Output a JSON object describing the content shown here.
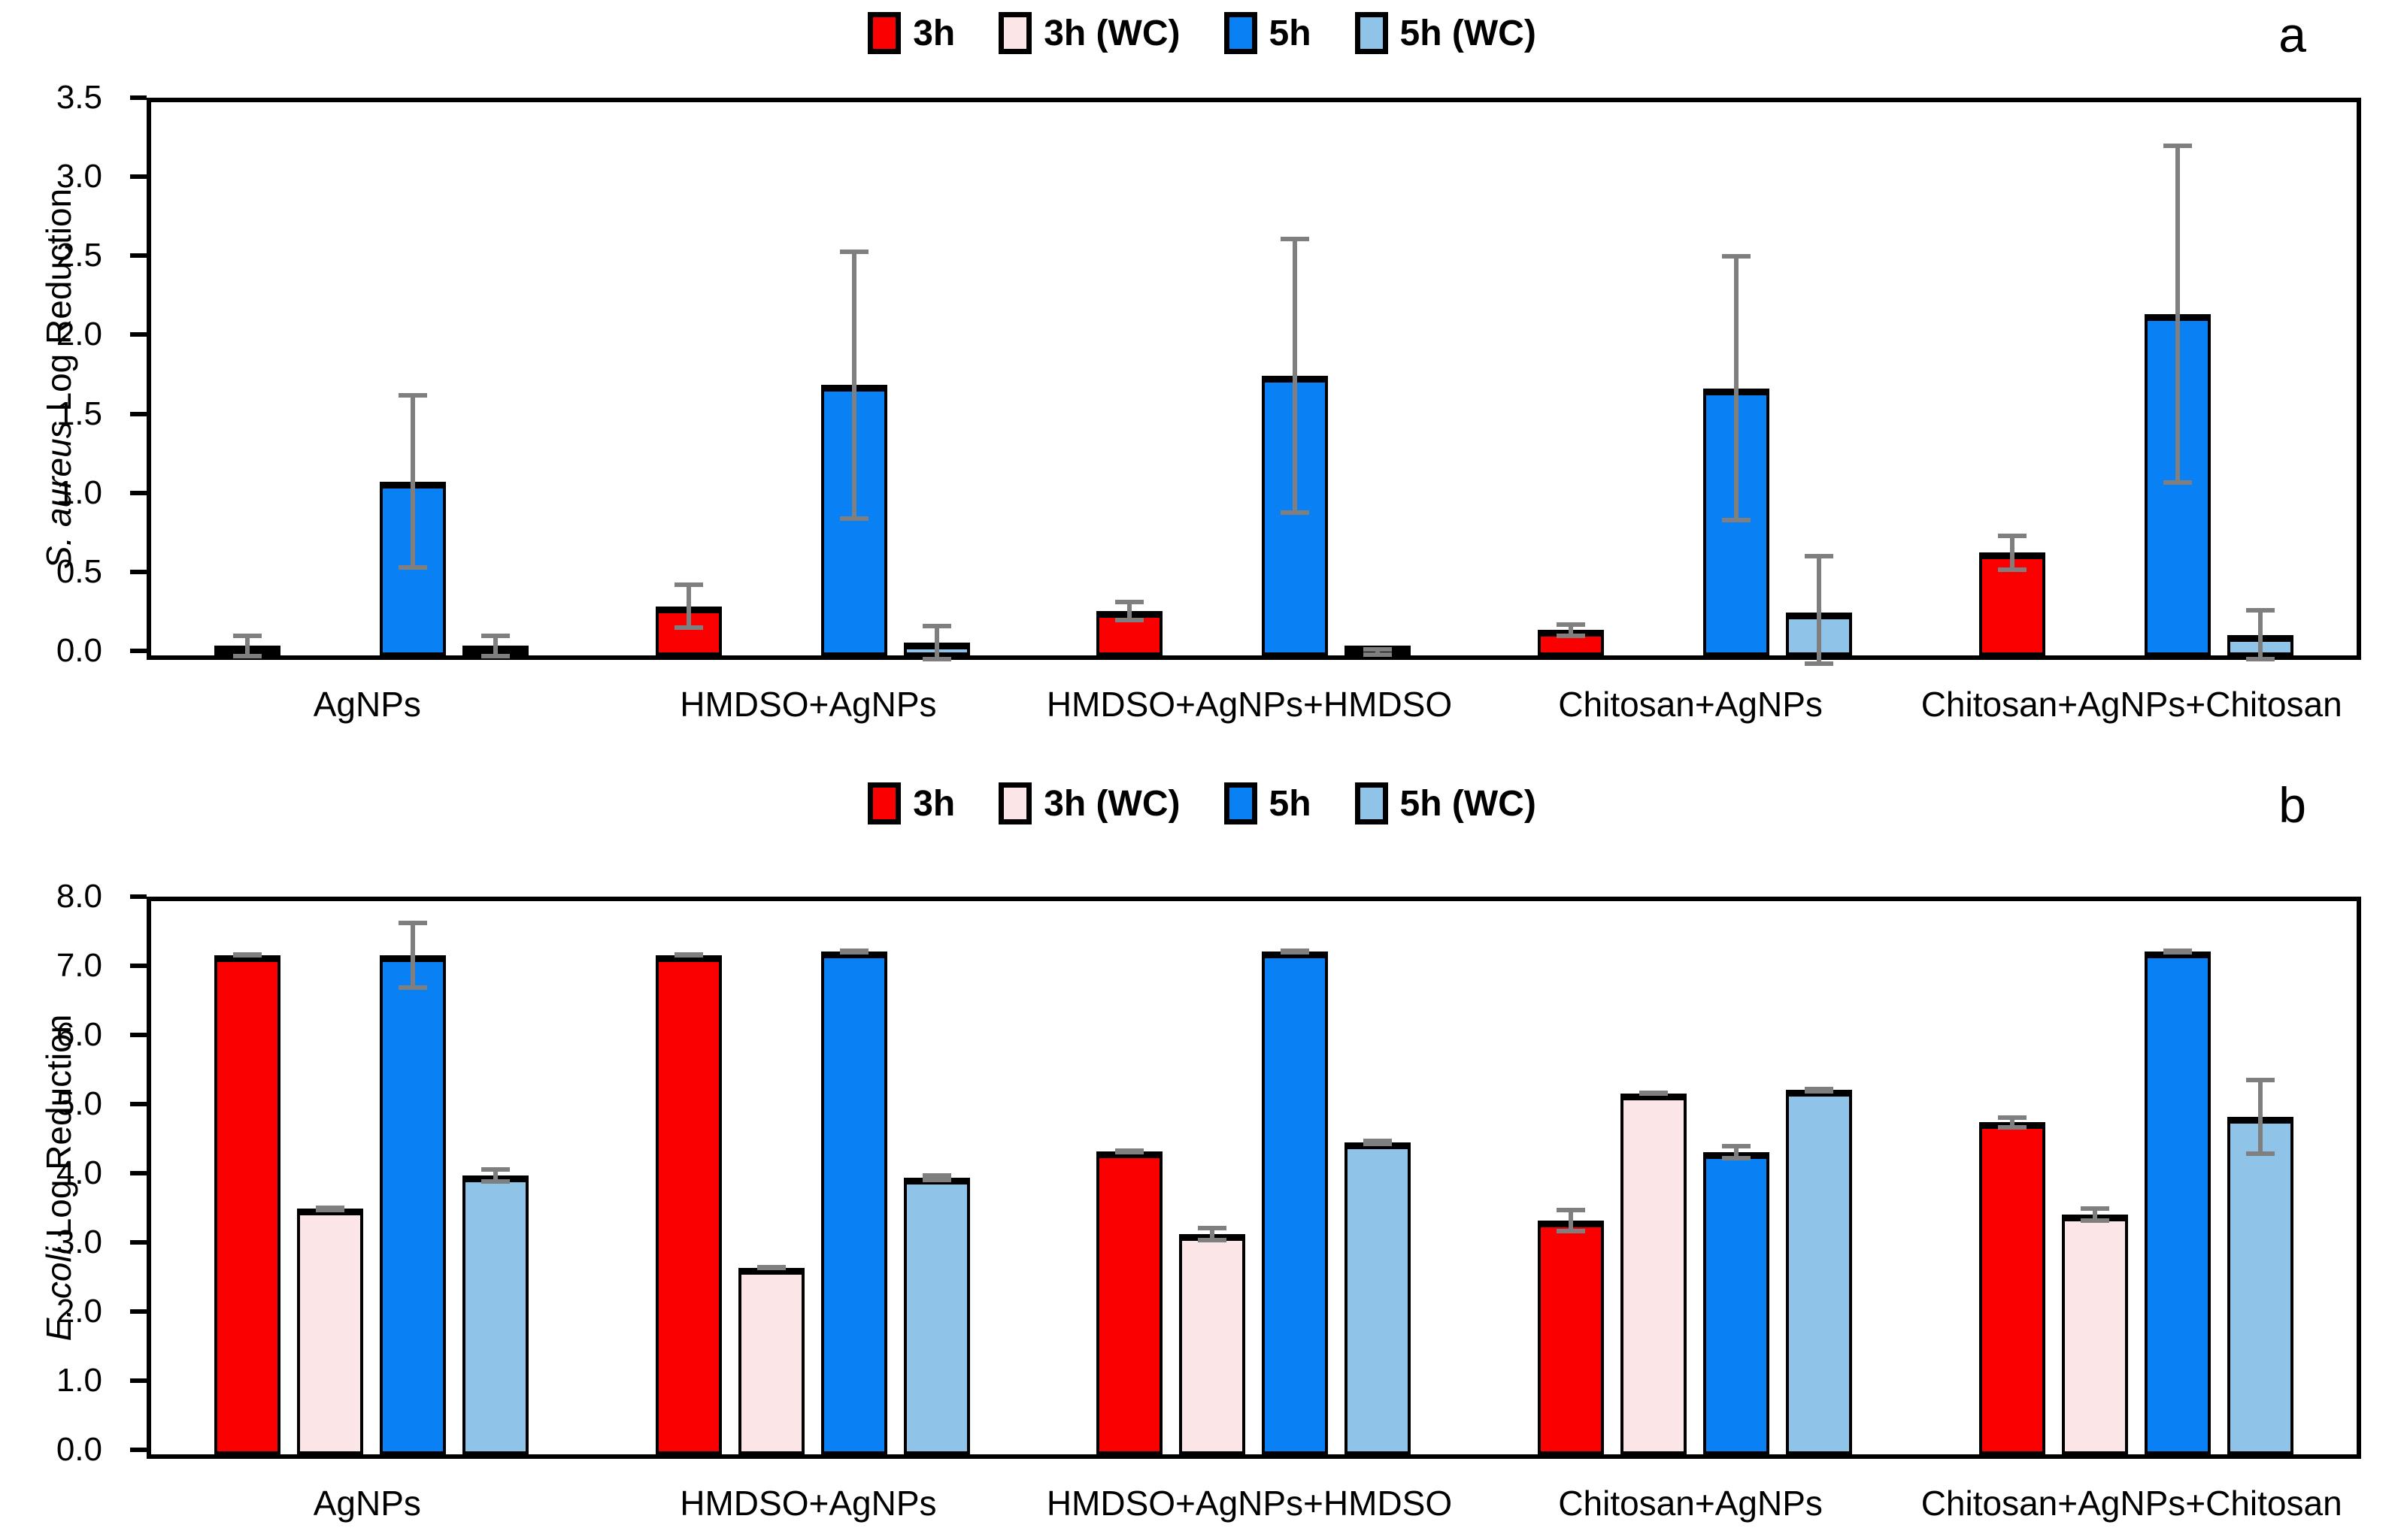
{
  "figure_colors": {
    "bar_3h": "#FA0000",
    "bar_3h_wc": "#FBE5E6",
    "bar_5h": "#0A80F5",
    "bar_5h_wc": "#8FC3E8",
    "error_bar": "#7F7F7F",
    "axis": "#000000"
  },
  "chart_data": [
    {
      "type": "bar",
      "panel": "a",
      "title": "",
      "ylabel": "S. aureus Log Reduction",
      "ylabel_italic_prefix": "S. aureus",
      "ylabel_suffix": " Log Reduction",
      "xlabel": "",
      "ylim": [
        0,
        3.5
      ],
      "ytick_step": 0.5,
      "grid": false,
      "legend_position": "top-center",
      "categories": [
        "AgNPs",
        "HMDSO+AgNPs",
        "HMDSO+AgNPs+HMDSO",
        "Chitosan+AgNPs",
        "Chitosan+AgNPs+Chitosan"
      ],
      "series": [
        {
          "name": "3h",
          "color": "#FA0000",
          "values": [
            0.06,
            0.31,
            0.28,
            0.16,
            0.65
          ],
          "errors": [
            0.08,
            0.15,
            0.07,
            0.05,
            0.12
          ]
        },
        {
          "name": "3h (WC)",
          "color": "#FBE5E6",
          "values": [
            0,
            0,
            0,
            0,
            0
          ],
          "errors": [
            0,
            0,
            0,
            0,
            0
          ]
        },
        {
          "name": "5h",
          "color": "#0A80F5",
          "values": [
            1.1,
            1.71,
            1.77,
            1.69,
            2.16
          ],
          "errors": [
            0.56,
            0.86,
            0.88,
            0.85,
            1.08
          ]
        },
        {
          "name": "5h (WC)",
          "color": "#8FC3E8",
          "values": [
            0.06,
            0.08,
            0.02,
            0.27,
            0.13
          ],
          "errors": [
            0.08,
            0.12,
            0.03,
            0.37,
            0.17
          ]
        }
      ]
    },
    {
      "type": "bar",
      "panel": "b",
      "title": "",
      "ylabel": "E. coli Log Reduction",
      "ylabel_italic_prefix": "E. coli",
      "ylabel_suffix": " Log Reduction",
      "xlabel": "",
      "ylim": [
        0,
        8.0
      ],
      "ytick_step": 1.0,
      "grid": false,
      "legend_position": "top-center",
      "categories": [
        "AgNPs",
        "HMDSO+AgNPs",
        "HMDSO+AgNPs+HMDSO",
        "Chitosan+AgNPs",
        "Chitosan+AgNPs+Chitosan"
      ],
      "series": [
        {
          "name": "3h",
          "color": "#FA0000",
          "values": [
            7.22,
            7.22,
            4.38,
            3.38,
            4.8
          ],
          "errors": [
            0.04,
            0.04,
            0.04,
            0.18,
            0.1
          ]
        },
        {
          "name": "3h (WC)",
          "color": "#FBE5E6",
          "values": [
            3.55,
            2.7,
            3.18,
            5.22,
            3.47
          ],
          "errors": [
            0.05,
            0.04,
            0.12,
            0.04,
            0.12
          ]
        },
        {
          "name": "5h",
          "color": "#0A80F5",
          "values": [
            7.22,
            7.27,
            7.27,
            4.37,
            7.27
          ],
          "errors": [
            0.5,
            0.04,
            0.04,
            0.12,
            0.04
          ]
        },
        {
          "name": "5h (WC)",
          "color": "#8FC3E8",
          "values": [
            4.03,
            4.0,
            4.51,
            5.27,
            4.88
          ],
          "errors": [
            0.12,
            0.07,
            0.05,
            0.05,
            0.57
          ]
        }
      ]
    }
  ]
}
